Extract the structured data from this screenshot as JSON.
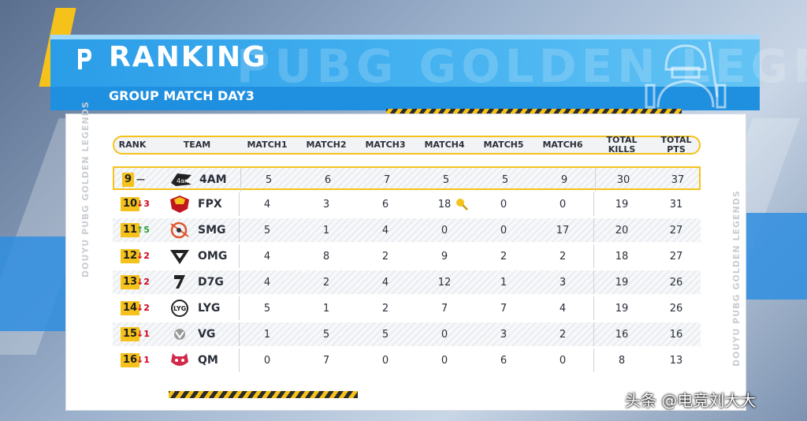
{
  "header": {
    "title": "RANKING",
    "subtitle": "GROUP MATCH  DAY3",
    "watermark_text": "PUBG GOLDEN LEGENDS",
    "side_text": "DOUYU PUBG GOLDEN LEGENDS"
  },
  "columns": [
    "RANK",
    "TEAM",
    "MATCH1",
    "MATCH2",
    "MATCH3",
    "MATCH4",
    "MATCH5",
    "MATCH6",
    "TOTAL\nKILLS",
    "TOTAL\nPTS"
  ],
  "rows": [
    {
      "rank": "9",
      "change": "—",
      "change_dir": "same",
      "team": "4AM",
      "m1": "5",
      "m2": "6",
      "m3": "7",
      "m4": "5",
      "m5": "5",
      "m6": "9",
      "kills": "30",
      "pts": "37"
    },
    {
      "rank": "10",
      "change": "↓3",
      "change_dir": "down",
      "team": "FPX",
      "m1": "4",
      "m2": "3",
      "m3": "6",
      "m4": "18",
      "m5": "0",
      "m6": "0",
      "kills": "19",
      "pts": "31",
      "m4_icon": "frying-pan-icon"
    },
    {
      "rank": "11",
      "change": "↑5",
      "change_dir": "up",
      "team": "SMG",
      "m1": "5",
      "m2": "1",
      "m3": "4",
      "m4": "0",
      "m5": "0",
      "m6": "17",
      "kills": "20",
      "pts": "27"
    },
    {
      "rank": "12",
      "change": "↓2",
      "change_dir": "down",
      "team": "OMG",
      "m1": "4",
      "m2": "8",
      "m3": "2",
      "m4": "9",
      "m5": "2",
      "m6": "2",
      "kills": "18",
      "pts": "27"
    },
    {
      "rank": "13",
      "change": "↓2",
      "change_dir": "down",
      "team": "D7G",
      "m1": "4",
      "m2": "2",
      "m3": "4",
      "m4": "12",
      "m5": "1",
      "m6": "3",
      "kills": "19",
      "pts": "26"
    },
    {
      "rank": "14",
      "change": "↓2",
      "change_dir": "down",
      "team": "LYG",
      "m1": "5",
      "m2": "1",
      "m3": "2",
      "m4": "7",
      "m5": "7",
      "m6": "4",
      "kills": "19",
      "pts": "26"
    },
    {
      "rank": "15",
      "change": "↓1",
      "change_dir": "down",
      "team": "VG",
      "m1": "1",
      "m2": "5",
      "m3": "5",
      "m4": "0",
      "m5": "3",
      "m6": "2",
      "kills": "16",
      "pts": "16"
    },
    {
      "rank": "16",
      "change": "↓1",
      "change_dir": "down",
      "team": "QM",
      "m1": "0",
      "m2": "7",
      "m3": "0",
      "m4": "0",
      "m5": "6",
      "m6": "0",
      "kills": "8",
      "pts": "13"
    }
  ],
  "watermark": "头条 @电竞刘大大",
  "colors": {
    "accent_gold": "#f5c21b",
    "header_blue": "#2a9de8",
    "down": "#d0021b",
    "up": "#2e9e3a"
  }
}
